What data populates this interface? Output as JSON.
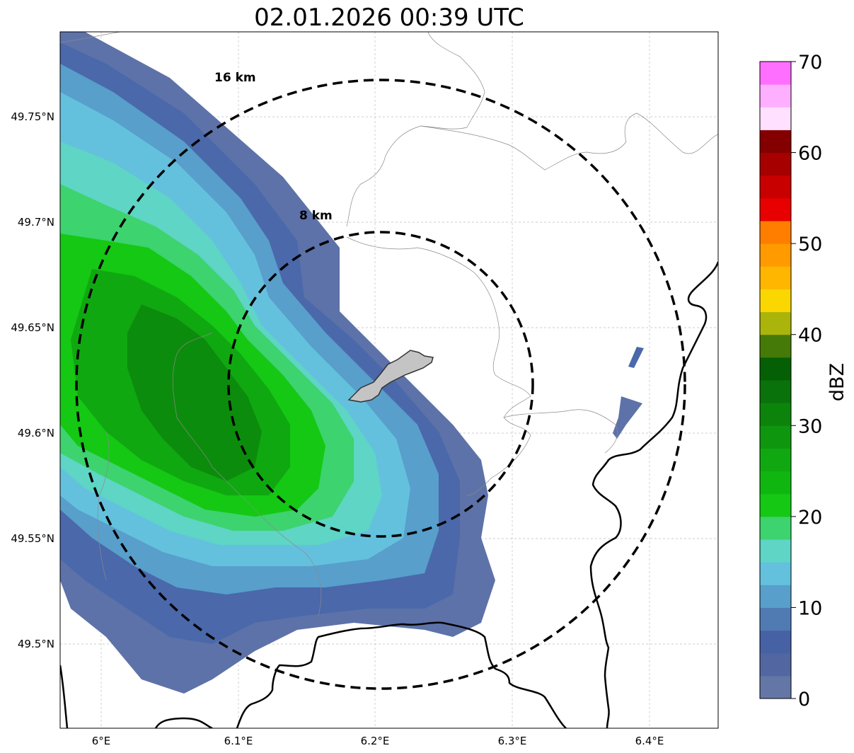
{
  "title": "02.01.2026 00:39 UTC",
  "map": {
    "lon_range": [
      5.97,
      6.45
    ],
    "lat_range": [
      49.46,
      49.79
    ],
    "lon_ticks": [
      {
        "value": 6.0,
        "label": "6°E"
      },
      {
        "value": 6.1,
        "label": "6.1°E"
      },
      {
        "value": 6.2,
        "label": "6.2°E"
      },
      {
        "value": 6.3,
        "label": "6.3°E"
      },
      {
        "value": 6.4,
        "label": "6.4°E"
      }
    ],
    "lat_ticks": [
      {
        "value": 49.5,
        "label": "49.5°N"
      },
      {
        "value": 49.55,
        "label": "49.55°N"
      },
      {
        "value": 49.6,
        "label": "49.6°N"
      },
      {
        "value": 49.65,
        "label": "49.65°N"
      },
      {
        "value": 49.7,
        "label": "49.7°N"
      },
      {
        "value": 49.75,
        "label": "49.75°N"
      }
    ],
    "gridlines": true,
    "center": {
      "lon": 6.203,
      "lat": 49.623
    },
    "range_rings": [
      {
        "radius_km": 8,
        "label": "8 km"
      },
      {
        "radius_km": 16,
        "label": "16 km"
      }
    ],
    "ring_color": "#000000",
    "highlight_fill": "#c4c4c4"
  },
  "colorbar": {
    "label": "dBZ",
    "min": 0,
    "max": 70,
    "step": 2.5,
    "tick_values": [
      0,
      10,
      20,
      30,
      40,
      50,
      60,
      70
    ],
    "tick_labels": [
      "0",
      "10",
      "20",
      "30",
      "40",
      "50",
      "60",
      "70"
    ],
    "colors": [
      "#6476a6",
      "#5266a2",
      "#4762a4",
      "#4f7bb2",
      "#589fcb",
      "#64c1de",
      "#5ed5c5",
      "#3dd36e",
      "#14c814",
      "#10b610",
      "#10a810",
      "#0f960f",
      "#0c840c",
      "#0a720a",
      "#055f05",
      "#457a08",
      "#aab40a",
      "#fad700",
      "#feb600",
      "#ff9b00",
      "#ff7e00",
      "#e80000",
      "#c80000",
      "#a60000",
      "#840000",
      "#ffe1ff",
      "#ffafff",
      "#ff6fff",
      "#f033f0"
    ]
  }
}
